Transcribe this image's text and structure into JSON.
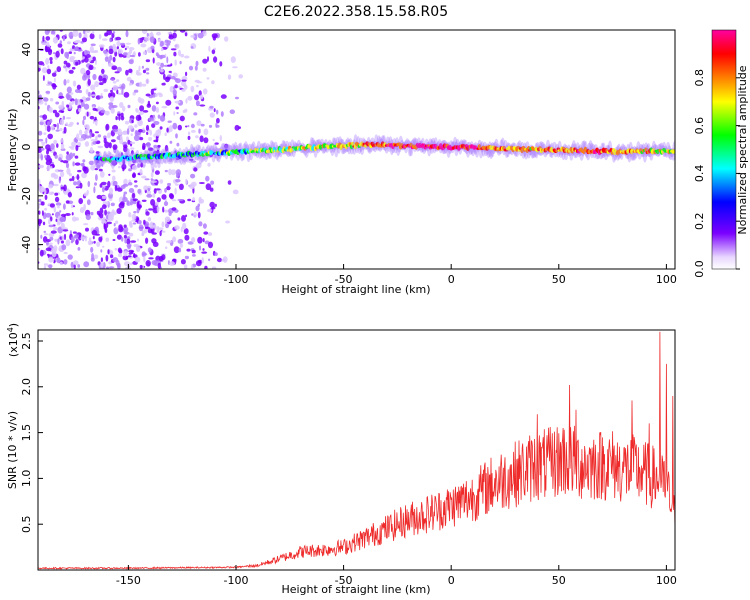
{
  "title": "C2E6.2022.358.15.58.R05",
  "chart_data": [
    {
      "type": "heatmap",
      "xlabel": "Height of straight line (km)",
      "ylabel": "Frequency (Hz)",
      "xlim": [
        -192,
        104
      ],
      "ylim": [
        -50,
        48
      ],
      "xticks": [
        -150,
        -100,
        -50,
        0,
        50,
        100
      ],
      "yticks": [
        -40,
        -20,
        0,
        20,
        40
      ],
      "colorbar": {
        "label": "Normalized spectral amplitude",
        "range": [
          0,
          1
        ],
        "ticks": [
          0.0,
          0.2,
          0.4,
          0.6,
          0.8
        ],
        "tick_labels": [
          "0.0",
          "0.2",
          "0.4",
          "0.6",
          "0.8"
        ],
        "colors": [
          "#ffffff",
          "#7a00ff",
          "#0000ff",
          "#00ffff",
          "#00ff00",
          "#ffff00",
          "#ff7f00",
          "#ff0000",
          "#ff00a0"
        ]
      },
      "ridge": {
        "x": [
          -160,
          -140,
          -120,
          -100,
          -80,
          -60,
          -40,
          -20,
          0,
          20,
          40,
          60,
          80,
          100
        ],
        "frequency": [
          -5,
          -4,
          -3,
          -2,
          -1,
          0,
          1,
          0.5,
          0,
          -0.5,
          -1,
          -1.5,
          -2,
          -1.5
        ],
        "amplitude": [
          0.3,
          0.35,
          0.4,
          0.45,
          0.5,
          0.6,
          0.7,
          0.9,
          0.95,
          0.8,
          0.7,
          0.8,
          0.75,
          0.6
        ]
      },
      "noise_region_x": [
        -192,
        -95
      ]
    },
    {
      "type": "line",
      "xlabel": "Height of straight line (km)",
      "ylabel": "SNR (10 * v/v)",
      "y_scale_label": "(x10",
      "y_scale_exp": "4",
      "y_scale_close": ")",
      "color": "#ff2020",
      "xlim": [
        -192,
        104
      ],
      "ylim": [
        0,
        2.62
      ],
      "xticks": [
        -150,
        -100,
        -50,
        0,
        50,
        100
      ],
      "yticks": [
        0.5,
        1.0,
        1.5,
        2.0,
        2.5
      ],
      "ytick_labels": [
        "0.5",
        "1.0",
        "1.5",
        "2.0",
        "2.5"
      ],
      "envelope": {
        "x": [
          -192,
          -150,
          -100,
          -90,
          -80,
          -70,
          -60,
          -50,
          -40,
          -30,
          -20,
          -10,
          0,
          10,
          20,
          30,
          35,
          40,
          45,
          50,
          55,
          60,
          65,
          70,
          75,
          80,
          85,
          90,
          95,
          100,
          104
        ],
        "y": [
          0.02,
          0.02,
          0.03,
          0.05,
          0.12,
          0.2,
          0.22,
          0.25,
          0.35,
          0.45,
          0.55,
          0.62,
          0.7,
          0.8,
          0.95,
          1.05,
          1.1,
          1.15,
          1.15,
          1.2,
          1.2,
          1.15,
          1.15,
          1.15,
          1.15,
          1.1,
          1.1,
          1.05,
          1.0,
          0.9,
          0.6
        ]
      },
      "spikes": [
        {
          "x": 40,
          "y": 1.7
        },
        {
          "x": 52,
          "y": 1.55
        },
        {
          "x": 55,
          "y": 2.02
        },
        {
          "x": 58,
          "y": 1.75
        },
        {
          "x": 84,
          "y": 1.85
        },
        {
          "x": 92,
          "y": 1.6
        },
        {
          "x": 97,
          "y": 2.6
        },
        {
          "x": 100,
          "y": 2.25
        },
        {
          "x": 103,
          "y": 1.9
        }
      ]
    }
  ]
}
